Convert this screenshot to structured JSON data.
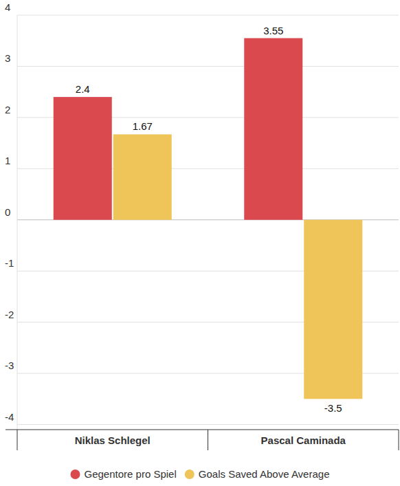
{
  "chart_data": {
    "type": "bar",
    "categories": [
      "Niklas Schlegel",
      "Pascal Caminada"
    ],
    "series": [
      {
        "name": "Gegentore pro Spiel",
        "color": "#d9494e",
        "values": [
          2.4,
          3.55
        ]
      },
      {
        "name": "Goals Saved Above Average",
        "color": "#efc55a",
        "values": [
          1.67,
          -3.5
        ]
      }
    ],
    "ylim": [
      -4.1,
      4
    ],
    "yticks": [
      -4,
      -3,
      -2,
      -1,
      0,
      1,
      2,
      3,
      4
    ],
    "grid": true,
    "data_labels": true,
    "legend": "bottom"
  }
}
